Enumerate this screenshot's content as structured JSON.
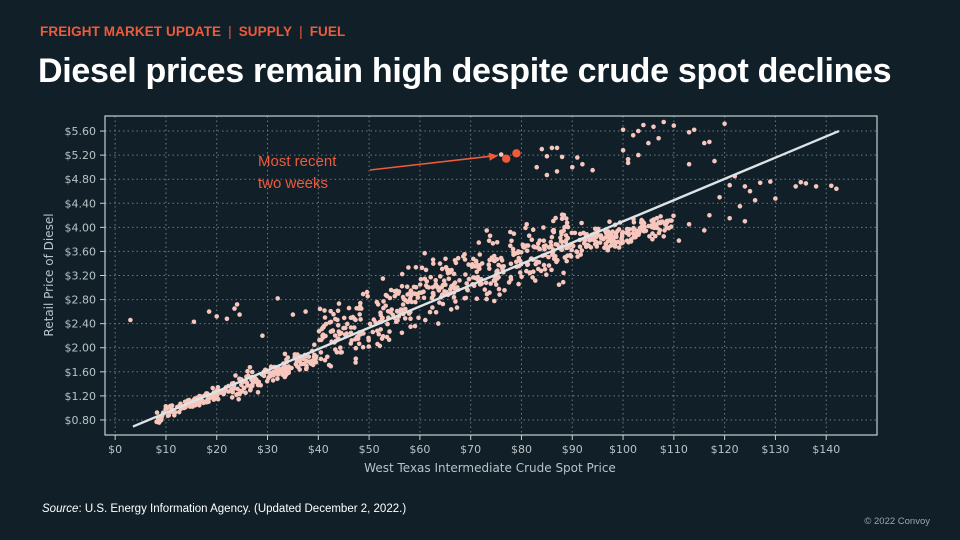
{
  "header": {
    "kicker": [
      "FREIGHT MARKET UPDATE",
      "SUPPLY",
      "FUEL"
    ],
    "title": "Diesel prices remain high despite crude spot declines"
  },
  "footer": {
    "source_label": "Source",
    "source_text": ": U.S. Energy Information Agency. (Updated December 2, 2022.)",
    "copyright": "© 2022 Convoy"
  },
  "colors": {
    "background": "#112028",
    "accent": "#ef5a3a",
    "points": "#f7c6bd",
    "fit_line": "#dde3e6"
  },
  "chart_data": {
    "type": "scatter",
    "xlabel": "West Texas Intermediate Crude Spot Price",
    "ylabel": "Retail Price of Diesel",
    "xlim": [
      -2,
      150
    ],
    "ylim": [
      0.55,
      5.85
    ],
    "xticks": [
      0,
      10,
      20,
      30,
      40,
      50,
      60,
      70,
      80,
      90,
      100,
      110,
      120,
      130,
      140
    ],
    "xtick_labels": [
      "$0",
      "$10",
      "$20",
      "$30",
      "$40",
      "$50",
      "$60",
      "$70",
      "$80",
      "$90",
      "$100",
      "$110",
      "$120",
      "$130",
      "$140"
    ],
    "yticks": [
      0.8,
      1.2,
      1.6,
      2.0,
      2.4,
      2.8,
      3.2,
      3.6,
      4.0,
      4.4,
      4.8,
      5.2,
      5.6
    ],
    "ytick_labels": [
      "$0.80",
      "$1.20",
      "$1.60",
      "$2.00",
      "$2.40",
      "$2.80",
      "$3.20",
      "$3.60",
      "$4.00",
      "$4.40",
      "$4.80",
      "$5.20",
      "$5.60"
    ],
    "grid": true,
    "fit_line": {
      "x": [
        3.5,
        142.5
      ],
      "y": [
        0.69,
        5.6
      ]
    },
    "highlight": {
      "text": [
        "Most recent",
        "two weeks"
      ],
      "points": [
        [
          77,
          5.14
        ],
        [
          79,
          5.23
        ]
      ]
    },
    "outliers": [
      [
        3,
        2.46
      ],
      [
        15.5,
        2.43
      ],
      [
        18.5,
        2.6
      ],
      [
        20,
        2.52
      ],
      [
        22,
        2.48
      ],
      [
        23.5,
        2.65
      ],
      [
        24,
        2.72
      ],
      [
        24.5,
        2.55
      ],
      [
        32,
        2.82
      ],
      [
        29,
        2.2
      ],
      [
        35,
        2.55
      ],
      [
        37.5,
        2.6
      ],
      [
        76,
        5.21
      ],
      [
        84,
        5.3
      ],
      [
        85,
        5.18
      ],
      [
        86,
        5.32
      ],
      [
        87,
        5.32
      ],
      [
        88,
        5.17
      ],
      [
        83,
        5.0
      ],
      [
        85,
        4.87
      ],
      [
        87,
        4.93
      ],
      [
        90,
        5.0
      ],
      [
        91,
        5.16
      ],
      [
        92,
        5.05
      ],
      [
        94,
        4.95
      ],
      [
        100,
        5.62
      ],
      [
        100,
        5.28
      ],
      [
        101,
        5.13
      ],
      [
        101,
        5.07
      ],
      [
        102,
        5.53
      ],
      [
        103,
        5.2
      ],
      [
        103,
        5.6
      ],
      [
        104,
        5.7
      ],
      [
        105,
        5.4
      ],
      [
        106,
        5.67
      ],
      [
        107,
        5.48
      ],
      [
        108,
        5.75
      ],
      [
        110,
        5.69
      ],
      [
        113,
        5.58
      ],
      [
        114,
        5.62
      ],
      [
        117,
        5.42
      ],
      [
        120,
        5.72
      ],
      [
        122,
        4.85
      ],
      [
        113,
        5.05
      ],
      [
        116,
        5.4
      ],
      [
        118,
        5.1
      ],
      [
        119,
        4.5
      ],
      [
        121,
        4.7
      ],
      [
        124,
        4.68
      ],
      [
        125,
        4.6
      ],
      [
        127,
        4.74
      ],
      [
        129,
        4.76
      ],
      [
        134,
        4.68
      ],
      [
        135,
        4.75
      ],
      [
        136,
        4.73
      ],
      [
        138,
        4.68
      ],
      [
        141,
        4.69
      ],
      [
        142,
        4.64
      ],
      [
        123,
        4.35
      ],
      [
        126,
        4.45
      ],
      [
        130,
        4.48
      ],
      [
        121,
        4.15
      ],
      [
        124,
        4.1
      ],
      [
        117,
        4.2
      ],
      [
        113,
        4.05
      ],
      [
        116,
        3.95
      ],
      [
        108,
        3.85
      ],
      [
        111,
        3.78
      ]
    ],
    "clusters": [
      {
        "x0": 8,
        "x1": 22,
        "n": 110,
        "a": 0.62,
        "b": 0.0305,
        "s": 0.05
      },
      {
        "x0": 22,
        "x1": 40,
        "n": 140,
        "a": 0.58,
        "b": 0.0325,
        "s": 0.09
      },
      {
        "x0": 40,
        "x1": 56,
        "n": 140,
        "a": 0.8,
        "b": 0.0335,
        "s": 0.26
      },
      {
        "x0": 56,
        "x1": 75,
        "n": 170,
        "a": 0.9,
        "b": 0.033,
        "s": 0.26
      },
      {
        "x0": 75,
        "x1": 92,
        "n": 160,
        "a": 0.8,
        "b": 0.0335,
        "s": 0.23
      },
      {
        "x0": 92,
        "x1": 110,
        "n": 150,
        "a": 2.05,
        "b": 0.0185,
        "s": 0.1
      }
    ]
  }
}
